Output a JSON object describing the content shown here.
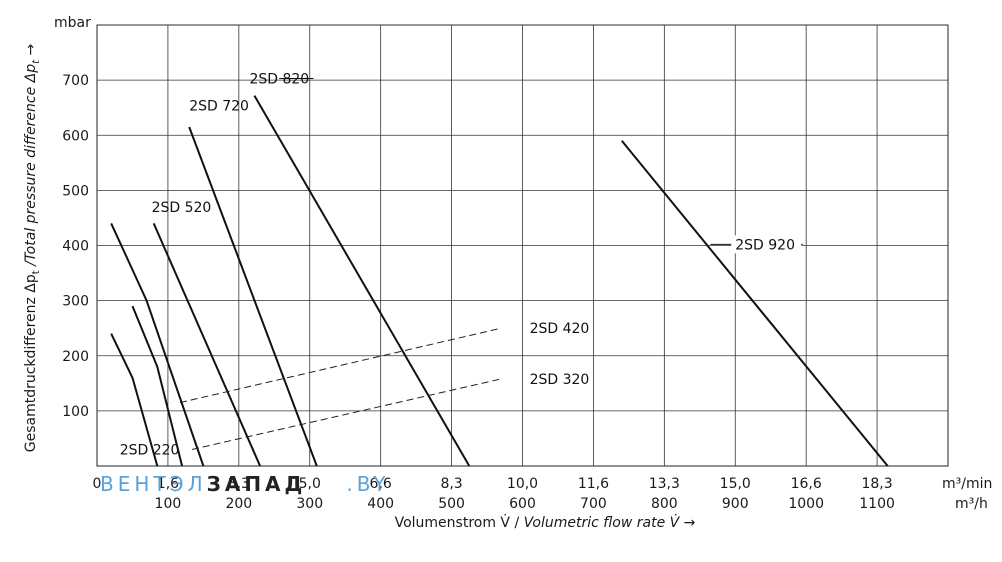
{
  "chart_data": {
    "type": "line",
    "xlabel_de": "Volumenstrom V̇ / ",
    "xlabel_en": "Volumetric flow rate V̇ →",
    "ylabel_de": "Gesamtdruckdifferenz Δp",
    "ylabel_sub": "t",
    "ylabel_en": " /Total pressure difference Δp",
    "ylabel_arrow": " →",
    "y_unit": "mbar",
    "x_unit_min": "m³/min",
    "x_unit_h": "m³/h",
    "xlim": [
      0,
      1200
    ],
    "ylim": [
      0,
      800
    ],
    "yticks": [
      100,
      200,
      300,
      400,
      500,
      600,
      700
    ],
    "xticks_h": [
      {
        "v": 0,
        "label": "0"
      },
      {
        "v": 100,
        "label": "100"
      },
      {
        "v": 200,
        "label": "200"
      },
      {
        "v": 300,
        "label": "300"
      },
      {
        "v": 400,
        "label": "400"
      },
      {
        "v": 500,
        "label": "500"
      },
      {
        "v": 600,
        "label": "600"
      },
      {
        "v": 700,
        "label": "700"
      },
      {
        "v": 800,
        "label": "800"
      },
      {
        "v": 900,
        "label": "900"
      },
      {
        "v": 1000,
        "label": "1000"
      },
      {
        "v": 1100,
        "label": "1100"
      }
    ],
    "xticks_min": [
      {
        "v": 100,
        "label": "1,6"
      },
      {
        "v": 200,
        "label": "3,3"
      },
      {
        "v": 300,
        "label": "5,0"
      },
      {
        "v": 400,
        "label": "6,6"
      },
      {
        "v": 500,
        "label": "8,3"
      },
      {
        "v": 600,
        "label": "10,0"
      },
      {
        "v": 700,
        "label": "11,6"
      },
      {
        "v": 800,
        "label": "13,3"
      },
      {
        "v": 900,
        "label": "15,0"
      },
      {
        "v": 1000,
        "label": "16,6"
      },
      {
        "v": 1100,
        "label": "18,3"
      }
    ],
    "grid": true,
    "series": [
      {
        "name": "2SD 220",
        "style": "solid",
        "points": [
          [
            20,
            240
          ],
          [
            50,
            160
          ],
          [
            85,
            0
          ]
        ]
      },
      {
        "name": "2SD 320",
        "style": "solid",
        "points": [
          [
            50,
            290
          ],
          [
            85,
            180
          ],
          [
            120,
            0
          ]
        ]
      },
      {
        "name": "2SD 420",
        "style": "solid",
        "points": [
          [
            20,
            440
          ],
          [
            70,
            300
          ],
          [
            150,
            0
          ]
        ]
      },
      {
        "name": "2SD 520",
        "style": "solid",
        "points": [
          [
            80,
            440
          ],
          [
            230,
            0
          ]
        ]
      },
      {
        "name": "2SD 720",
        "style": "solid",
        "points": [
          [
            130,
            615
          ],
          [
            310,
            0
          ]
        ]
      },
      {
        "name": "2SD 820",
        "style": "solid",
        "points": [
          [
            222,
            672
          ],
          [
            525,
            0
          ]
        ]
      },
      {
        "name": "2SD 920",
        "style": "solid",
        "points": [
          [
            740,
            590
          ],
          [
            1115,
            0
          ]
        ]
      }
    ],
    "guides": [
      {
        "target": "2SD 420",
        "from": [
          117,
          115
        ],
        "to": [
          570,
          250
        ]
      },
      {
        "target": "2SD 320",
        "from": [
          134,
          30
        ],
        "to": [
          570,
          158
        ]
      }
    ],
    "labels": [
      {
        "text": "2SD 820",
        "v": [
          215,
          703
        ],
        "leader_to": [
          257,
          703
        ]
      },
      {
        "text": "2SD 720",
        "v": [
          130,
          654
        ]
      },
      {
        "text": "2SD 520",
        "v": [
          77,
          470
        ]
      },
      {
        "text": "2SD 420",
        "v": [
          610,
          250
        ]
      },
      {
        "text": "2SD 320",
        "v": [
          610,
          158
        ]
      },
      {
        "text": "2SD 220",
        "v": [
          32,
          30
        ]
      },
      {
        "text": "2SD 920",
        "v": [
          900,
          402
        ],
        "leader_from": [
          865,
          402
        ],
        "leader_to": [
          995,
          402
        ]
      }
    ]
  },
  "watermark": {
    "part1": "ВЕНТЭЛ",
    "part2": "ЗАПАД",
    "part3": ".BY"
  }
}
